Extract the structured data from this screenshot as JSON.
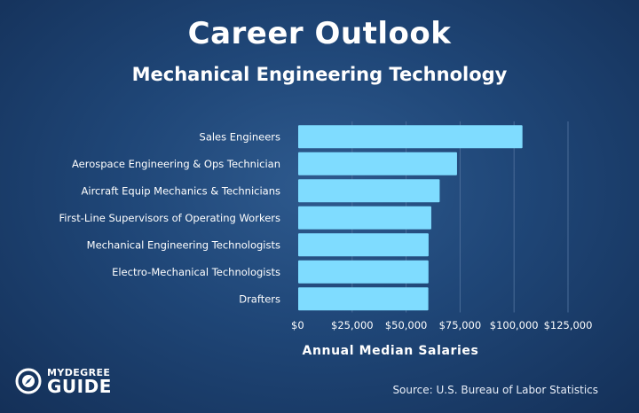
{
  "title": "Career Outlook",
  "subtitle": "Mechanical Engineering Technology",
  "source": "Source: U.S. Bureau of Labor Statistics",
  "logo": {
    "top": "MYDEGREE",
    "bottom": "GUIDE"
  },
  "colors": {
    "bar": "#7fdcff",
    "background": "#1f4677",
    "gridline": "#4a6c98"
  },
  "chart_data": {
    "type": "bar",
    "orientation": "horizontal",
    "categories": [
      "Sales Engineers",
      "Aerospace Engineering & Ops Technician",
      "Aircraft Equip Mechanics & Technicians",
      "First-Line Supervisors of Operating Workers",
      "Mechanical Engineering Technologists",
      "Electro-Mechanical Technologists",
      "Drafters"
    ],
    "values": [
      103900,
      73580,
      65550,
      61660,
      60410,
      60360,
      60290
    ],
    "xlabel": "Annual Median Salaries",
    "ylabel": "",
    "xlim": [
      0,
      125000
    ],
    "ticks": [
      0,
      25000,
      50000,
      75000,
      100000,
      125000
    ],
    "tick_labels": [
      "$0",
      "$25,000",
      "$50,000",
      "$75,000",
      "$100,000",
      "$125,000"
    ],
    "grid": true
  }
}
